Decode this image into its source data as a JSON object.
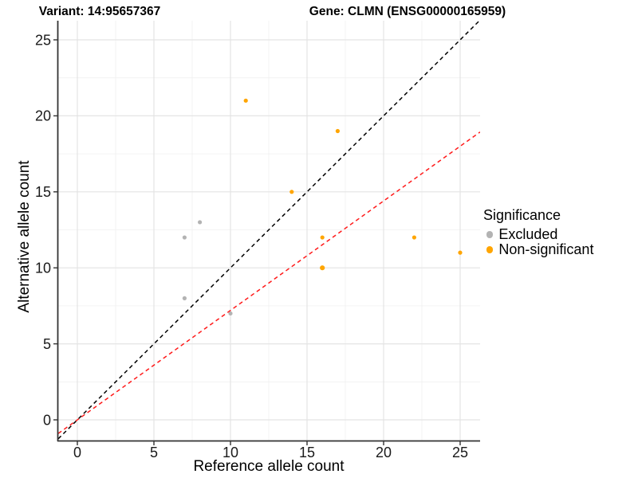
{
  "titles": {
    "variant": "Variant: 14:95657367",
    "gene": "Gene: CLMN (ENSG00000165959)"
  },
  "legend": {
    "title": "Significance",
    "items": [
      {
        "label": "Excluded",
        "color": "#B3B3B3"
      },
      {
        "label": "Non-significant",
        "color": "#FFA500"
      }
    ]
  },
  "chart_data": {
    "type": "scatter",
    "title_left": "Variant: 14:95657367",
    "title_right": "Gene: CLMN (ENSG00000165959)",
    "xlabel": "Reference allele count",
    "ylabel": "Alternative allele count",
    "x_ticks": [
      0,
      5,
      10,
      15,
      20,
      25
    ],
    "y_ticks": [
      0,
      5,
      10,
      15,
      20,
      25
    ],
    "x_minor_ticks": [
      2.5,
      7.5,
      12.5,
      17.5,
      22.5
    ],
    "y_minor_ticks": [
      2.5,
      7.5,
      12.5,
      17.5,
      22.5
    ],
    "xlim": [
      -1.25,
      26.3
    ],
    "ylim": [
      -1.36,
      26.3
    ],
    "grid": true,
    "legend_position": "right",
    "series": [
      {
        "name": "Excluded",
        "color": "#B3B3B3",
        "points": [
          {
            "x": 7,
            "y": 12
          },
          {
            "x": 8,
            "y": 13
          },
          {
            "x": 7,
            "y": 8
          },
          {
            "x": 10,
            "y": 7
          }
        ]
      },
      {
        "name": "Non-significant",
        "color": "#FFA500",
        "points": [
          {
            "x": 11,
            "y": 21
          },
          {
            "x": 17,
            "y": 19
          },
          {
            "x": 14,
            "y": 15
          },
          {
            "x": 16,
            "y": 12
          },
          {
            "x": 16,
            "y": 10,
            "r": 3.1
          },
          {
            "x": 22,
            "y": 12
          },
          {
            "x": 25,
            "y": 11
          }
        ]
      }
    ],
    "lines": [
      {
        "name": "identity-line",
        "slope": 1,
        "intercept": 0,
        "color": "#000000",
        "dashed": true
      },
      {
        "name": "expected-ratio-line",
        "slope": 0.72,
        "intercept": 0,
        "color": "#FF1A1A",
        "dashed": true
      }
    ]
  }
}
